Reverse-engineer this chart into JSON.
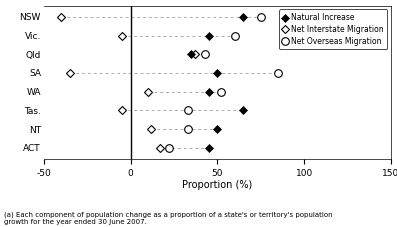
{
  "states": [
    "NSW",
    "Vic.",
    "Qld",
    "SA",
    "WA",
    "Tas.",
    "NT",
    "ACT"
  ],
  "natural_increase": [
    65,
    45,
    35,
    50,
    45,
    65,
    50,
    45
  ],
  "net_interstate": [
    -40,
    -5,
    37,
    -35,
    10,
    -5,
    12,
    17
  ],
  "net_overseas": [
    75,
    60,
    43,
    85,
    52,
    33,
    33,
    22
  ],
  "xlim": [
    -50,
    150
  ],
  "xticks": [
    -50,
    0,
    50,
    100,
    150
  ],
  "xlabel": "Proportion (%)",
  "legend_labels": [
    "Natural Increase",
    "Net Interstate Migration",
    "Net Overseas Migration"
  ],
  "footnote": "(a) Each component of population change as a proportion of a state's or territory's population\ngrowth for the year ended 30 June 2007.",
  "bg_color": "#ffffff",
  "line_color": "#aaaaaa"
}
